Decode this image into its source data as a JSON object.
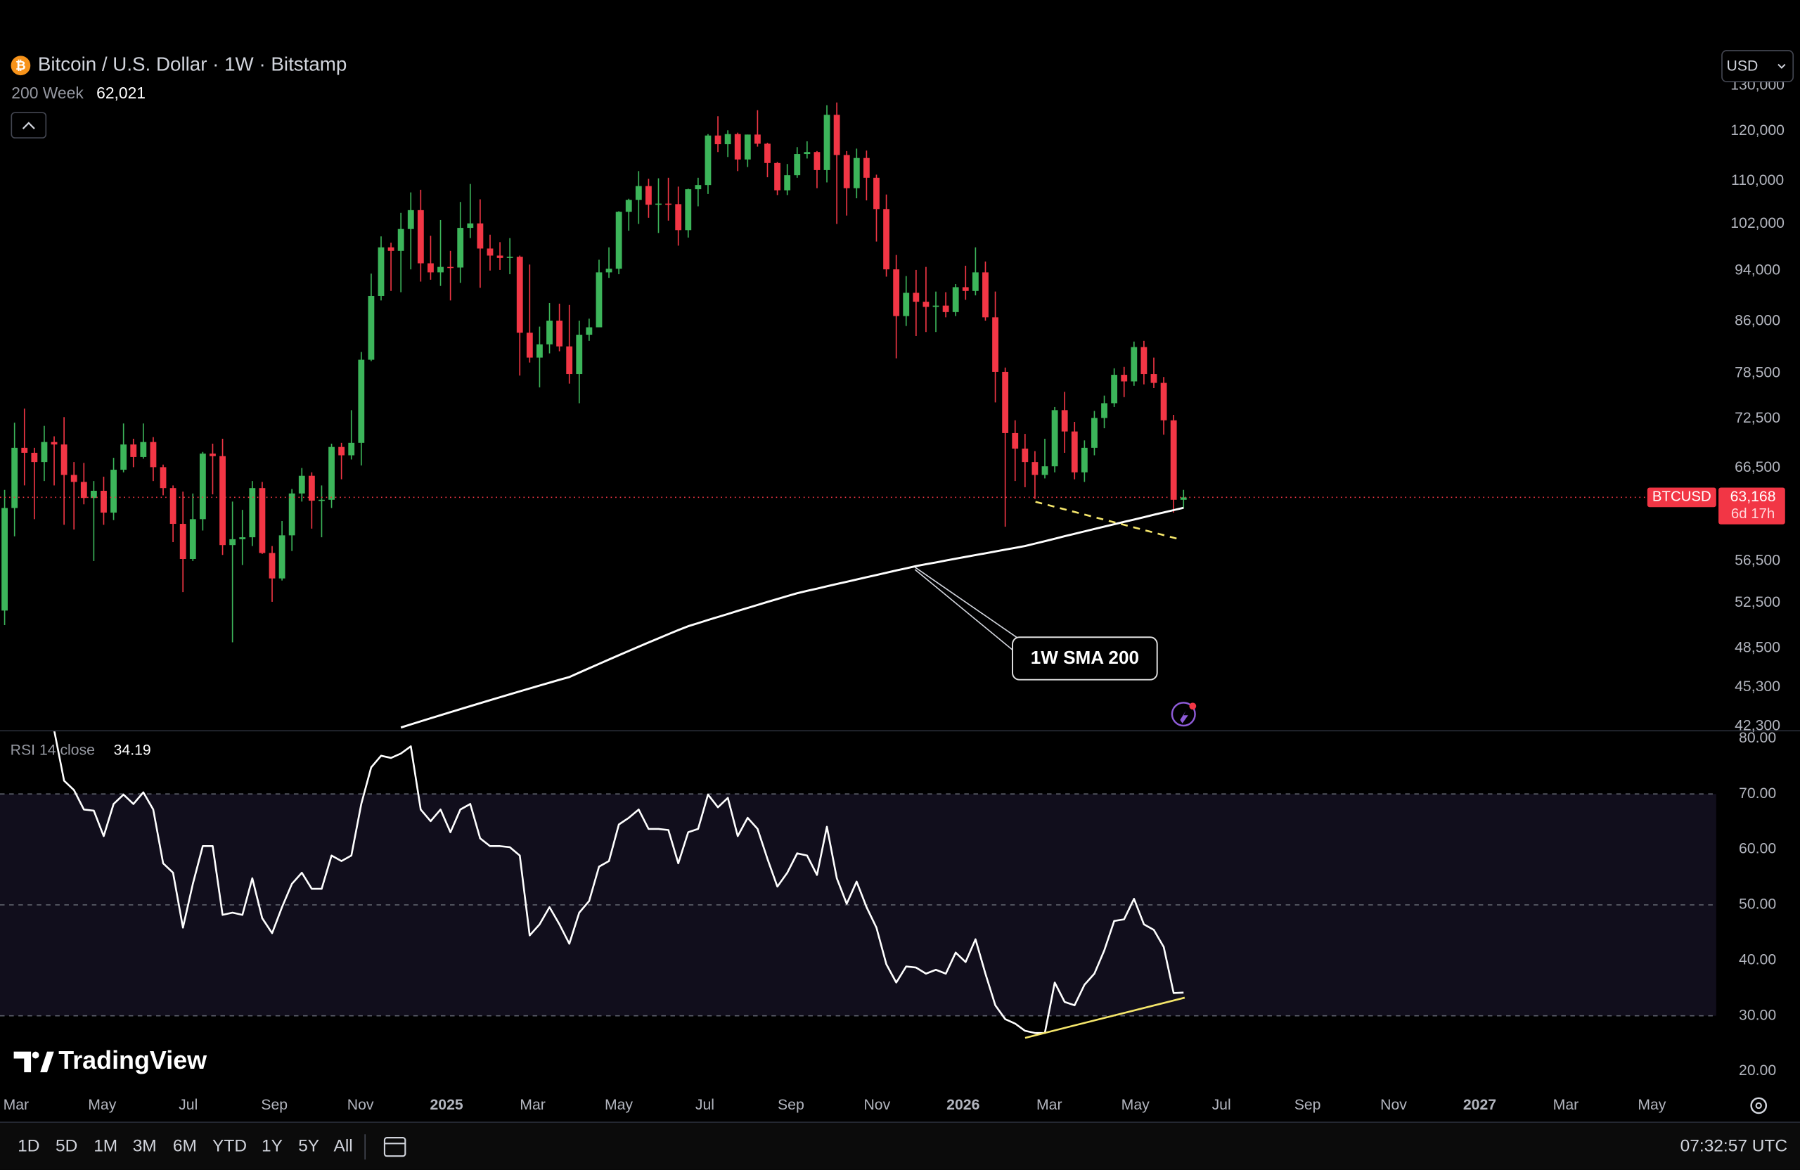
{
  "header": {
    "currency": "USD",
    "brand": "TradingView"
  },
  "chart_data": [
    {
      "type": "candlestick",
      "title": "Bitcoin / U.S. Dollar · 1W · Bitstamp",
      "symbol": "BTCUSD",
      "log": true,
      "grid": false,
      "up_color": "#3cb55a",
      "down_color": "#f23645",
      "ylim": [
        42000,
        151000
      ],
      "yticks": [
        {
          "value": 42300,
          "label": "42,300"
        },
        {
          "value": 45300,
          "label": "45,300"
        },
        {
          "value": 48500,
          "label": "48,500"
        },
        {
          "value": 52500,
          "label": "52,500"
        },
        {
          "value": 56500,
          "label": "56,500"
        },
        {
          "value": 66500,
          "label": "66,500"
        },
        {
          "value": 72500,
          "label": "72,500"
        },
        {
          "value": 78500,
          "label": "78,500"
        },
        {
          "value": 86000,
          "label": "86,000"
        },
        {
          "value": 94000,
          "label": "94,000"
        },
        {
          "value": 102000,
          "label": "102,000"
        },
        {
          "value": 110000,
          "label": "110,000"
        },
        {
          "value": 120000,
          "label": "120,000"
        },
        {
          "value": 130000,
          "label": "130,000"
        }
      ],
      "open": [
        51800,
        62000,
        68900,
        68300,
        67200,
        69600,
        69300,
        65700,
        64900,
        63100,
        63900,
        61500,
        66300,
        69300,
        67800,
        69600,
        66600,
        64200,
        60300,
        56700,
        60800,
        68200,
        67900,
        58100,
        58700,
        58900,
        64200,
        57300,
        54800,
        59100,
        63600,
        65600,
        62800,
        62900,
        69000,
        68000,
        69500,
        80400,
        89900,
        97900,
        97300,
        101100,
        104500,
        95200,
        93700,
        94600,
        94500,
        101300,
        102100,
        97700,
        96500,
        96100,
        96300,
        84300,
        80700,
        82600,
        86100,
        82300,
        78400,
        84000,
        85100,
        93700,
        94300,
        104200,
        106400,
        109000,
        105500,
        105700,
        105600,
        100900,
        108400,
        109200,
        119100,
        117300,
        119400,
        114200,
        119300,
        117400,
        113500,
        108200,
        111100,
        115300,
        115700,
        112100,
        123500,
        115100,
        108600,
        114500,
        110600,
        104700,
        94200,
        86800,
        90400,
        89000,
        88200,
        88400,
        87400,
        91300,
        90700,
        93700,
        86600,
        78700,
        70700,
        68800,
        67200,
        65700,
        66700,
        73600,
        70900,
        66000,
        68900,
        72600,
        74500,
        78300,
        77400,
        82200,
        78400,
        77200,
        72300,
        62900
      ],
      "high": [
        64000,
        72000,
        73800,
        68900,
        71600,
        70300,
        72700,
        67200,
        67100,
        65000,
        65500,
        67700,
        71900,
        70000,
        71900,
        70200,
        66900,
        64500,
        63800,
        63600,
        68400,
        69400,
        70000,
        62700,
        61800,
        65000,
        64900,
        58000,
        60600,
        64100,
        66500,
        66000,
        64500,
        69400,
        69500,
        73600,
        81500,
        93500,
        99800,
        98700,
        104000,
        107800,
        108300,
        99900,
        102700,
        97300,
        106000,
        109400,
        106500,
        100100,
        98800,
        99500,
        96500,
        95000,
        85200,
        88800,
        88700,
        88500,
        86100,
        86400,
        95800,
        97900,
        104300,
        106600,
        111900,
        110400,
        110500,
        110600,
        108900,
        108500,
        110600,
        119400,
        123200,
        120200,
        119700,
        119300,
        124500,
        117600,
        113700,
        113300,
        116700,
        117900,
        115900,
        125600,
        126200,
        115900,
        116400,
        116000,
        111200,
        107400,
        96600,
        93100,
        94100,
        94600,
        90600,
        90500,
        91800,
        94800,
        97900,
        95500,
        90600,
        79300,
        72300,
        70600,
        68500,
        70000,
        74000,
        76000,
        72100,
        69800,
        73500,
        75500,
        79200,
        79400,
        83000,
        83100,
        80700,
        78000,
        73000,
        64000
      ],
      "low": [
        50500,
        59000,
        64500,
        60800,
        65000,
        64500,
        60200,
        59700,
        62400,
        56500,
        60200,
        60700,
        66000,
        66600,
        67600,
        65000,
        63400,
        58400,
        53500,
        56500,
        59600,
        63500,
        57100,
        49000,
        56100,
        58000,
        57200,
        52600,
        54600,
        57500,
        62700,
        59800,
        58900,
        62000,
        65200,
        67500,
        66800,
        80200,
        89200,
        90700,
        90500,
        94200,
        92200,
        92500,
        91500,
        89200,
        92000,
        99500,
        91200,
        94000,
        94100,
        93400,
        78200,
        80000,
        76600,
        81300,
        81600,
        77100,
        74500,
        83100,
        85100,
        92800,
        93400,
        100800,
        102000,
        103100,
        100400,
        102600,
        98200,
        99600,
        105200,
        107500,
        115700,
        114700,
        111900,
        112700,
        116800,
        110700,
        107300,
        107300,
        110600,
        114400,
        108600,
        109700,
        102000,
        103500,
        106700,
        106300,
        98900,
        93000,
        80600,
        85300,
        83800,
        84400,
        84400,
        86600,
        86800,
        89300,
        90000,
        86100,
        74600,
        60000,
        65000,
        64300,
        63000,
        65300,
        66000,
        68300,
        65200,
        64900,
        68000,
        71300,
        74000,
        75300,
        76800,
        77000,
        76500,
        70500,
        61500,
        62000
      ],
      "close": [
        62000,
        68900,
        68300,
        67200,
        69600,
        69300,
        65700,
        64900,
        63100,
        63900,
        61500,
        66300,
        69300,
        67800,
        69600,
        66600,
        64200,
        60300,
        56700,
        60800,
        68200,
        67900,
        58100,
        58700,
        58900,
        64200,
        57300,
        54800,
        59100,
        63600,
        65600,
        62800,
        62900,
        69000,
        68000,
        69500,
        80400,
        89900,
        97900,
        97300,
        101100,
        104500,
        95200,
        93700,
        94600,
        94500,
        101300,
        102100,
        97700,
        96500,
        96100,
        96300,
        84300,
        80700,
        82600,
        86100,
        82300,
        78400,
        84000,
        85100,
        93700,
        94300,
        104200,
        106400,
        109000,
        105500,
        105700,
        105600,
        100900,
        108400,
        109200,
        119100,
        117300,
        119400,
        114200,
        119300,
        117400,
        113500,
        108200,
        111100,
        115300,
        115700,
        112100,
        123500,
        115100,
        108600,
        114500,
        110600,
        104700,
        94200,
        86800,
        90400,
        89000,
        88200,
        88400,
        87400,
        91300,
        90700,
        93700,
        86600,
        78700,
        70700,
        68800,
        67200,
        65700,
        66700,
        73600,
        70900,
        66000,
        68900,
        72600,
        74500,
        78300,
        77400,
        82200,
        78400,
        77200,
        72300,
        62900,
        63168
      ],
      "last_close_label": "63,168",
      "countdown": "6d 17h",
      "overlays": [
        {
          "name": "200 Week",
          "color": "#ffffff",
          "last_label": "62,021",
          "values": [
            null,
            null,
            null,
            null,
            null,
            null,
            null,
            null,
            null,
            null,
            null,
            null,
            null,
            null,
            null,
            null,
            null,
            null,
            null,
            null,
            null,
            null,
            null,
            null,
            null,
            null,
            null,
            null,
            null,
            null,
            null,
            null,
            null,
            null,
            null,
            null,
            null,
            null,
            null,
            null,
            42200,
            42430,
            42660,
            42890,
            43120,
            43350,
            43580,
            43810,
            44040,
            44270,
            44500,
            44730,
            44960,
            45190,
            45420,
            45650,
            45880,
            46100,
            46460,
            46820,
            47180,
            47540,
            47900,
            48260,
            48620,
            48980,
            49340,
            49700,
            50060,
            50400,
            50670,
            50950,
            51220,
            51490,
            51770,
            52040,
            52310,
            52590,
            52860,
            53130,
            53400,
            53620,
            53830,
            54050,
            54270,
            54480,
            54700,
            54920,
            55130,
            55350,
            55570,
            55780,
            56000,
            56180,
            56360,
            56550,
            56730,
            56910,
            57090,
            57270,
            57450,
            57640,
            57820,
            58000,
            58250,
            58500,
            58750,
            59010,
            59260,
            59510,
            59760,
            60010,
            60260,
            60510,
            60760,
            61010,
            61270,
            61520,
            61770,
            62021
          ]
        }
      ],
      "annotations": [
        {
          "text": "1W SMA 200"
        }
      ]
    },
    {
      "type": "line",
      "grid": false,
      "series": [
        {
          "name": "RSI 14 close",
          "color": "#ffffff",
          "values": [
            null,
            null,
            null,
            null,
            null,
            81.5,
            72.4,
            70.7,
            67.2,
            67,
            62.4,
            68.2,
            69.9,
            68.2,
            70.3,
            67.2,
            57.5,
            55.8,
            45.9,
            53.8,
            60.6,
            60.6,
            48.2,
            48.6,
            48.2,
            54.8,
            47.6,
            44.9,
            49.6,
            53.8,
            55.8,
            52.9,
            52.9,
            58.9,
            57.9,
            58.9,
            68.2,
            74.8,
            76.9,
            76.5,
            77.3,
            78.6,
            67.2,
            65.1,
            67.2,
            63.1,
            67.2,
            68.2,
            62,
            60.6,
            60.6,
            60.4,
            58.9,
            44.5,
            46.5,
            49.6,
            46.5,
            43,
            48.6,
            50.7,
            56.9,
            57.9,
            64.5,
            65.7,
            67.2,
            63.7,
            63.7,
            63.5,
            57.5,
            63.1,
            63.7,
            69.9,
            67.6,
            69.3,
            62.4,
            65.7,
            63.7,
            58.3,
            53.3,
            55.8,
            59.3,
            58.9,
            55.4,
            64.1,
            54.8,
            50.2,
            54.2,
            49.6,
            45.9,
            39.3,
            36,
            38.9,
            38.7,
            37.6,
            38.3,
            37.6,
            41.4,
            39.7,
            43.8,
            37.6,
            31.9,
            29.4,
            28.6,
            27.3,
            26.9,
            26.9,
            36,
            32.5,
            31.9,
            35.6,
            37.6,
            41.8,
            47.1,
            47.4,
            51.1,
            46.5,
            45.5,
            42.4,
            34.1,
            34.19
          ]
        }
      ],
      "levels": [
        70,
        50,
        30
      ],
      "band_color": "#110e1c",
      "ylim": [
        16.5,
        81.5
      ],
      "yticks": [
        {
          "value": 80,
          "label": "80.00"
        },
        {
          "value": 70,
          "label": "70.00"
        },
        {
          "value": 60,
          "label": "60.00"
        },
        {
          "value": 50,
          "label": "50.00"
        },
        {
          "value": 40,
          "label": "40.00"
        },
        {
          "value": 30,
          "label": "30.00"
        },
        {
          "value": 20,
          "label": "20.00"
        }
      ],
      "xticks": [
        "Mar",
        "May",
        "Jul",
        "Sep",
        "Nov",
        "2025",
        "Mar",
        "May",
        "Jul",
        "Sep",
        "Nov",
        "2026",
        "Mar",
        "May",
        "Jul",
        "Sep",
        "Nov",
        "2027",
        "Mar",
        "May"
      ]
    }
  ],
  "toolbar": {
    "ranges": [
      "1D",
      "5D",
      "1M",
      "3M",
      "6M",
      "YTD",
      "1Y",
      "5Y",
      "All"
    ],
    "clock": "07:32:57 UTC"
  }
}
